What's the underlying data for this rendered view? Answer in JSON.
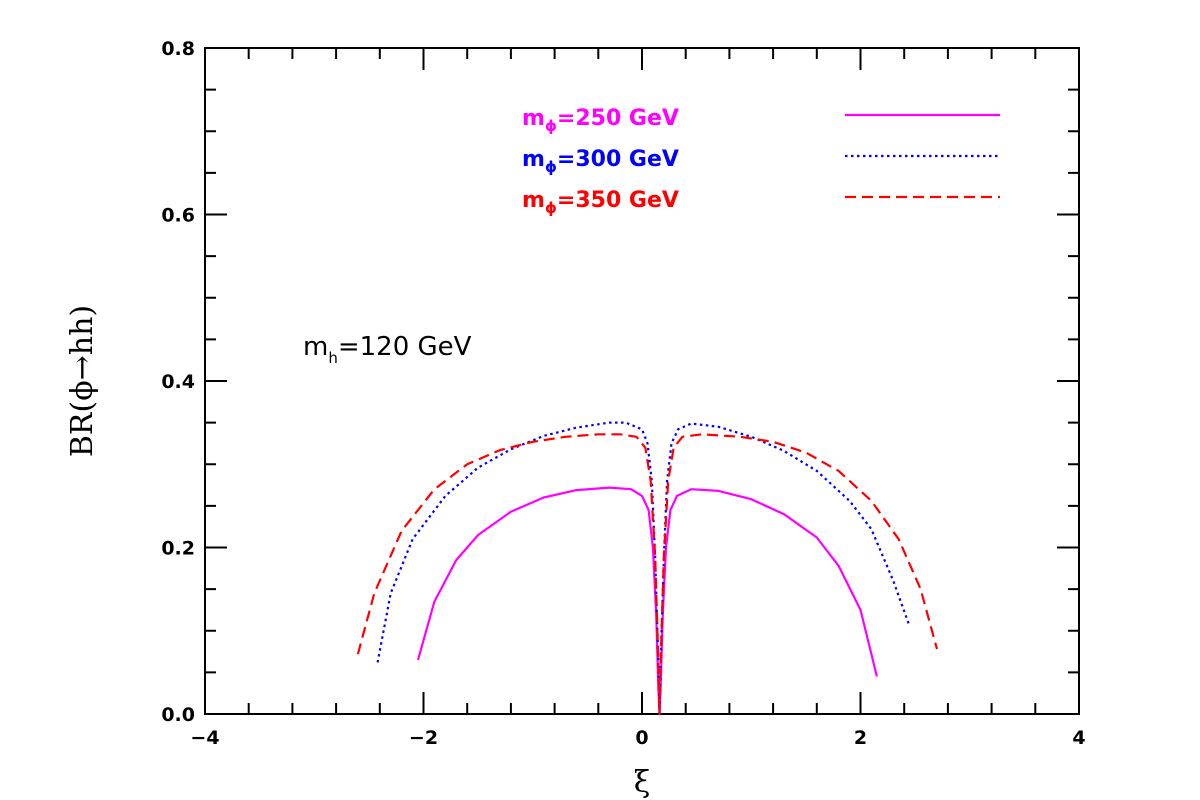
{
  "chart_data": {
    "type": "line",
    "title": "",
    "xlabel": "ξ",
    "ylabel": "BR(ϕ→hh)",
    "xlim": [
      -4,
      4
    ],
    "ylim": [
      0,
      0.8
    ],
    "x_major_ticks": [
      -4,
      -2,
      0,
      2,
      4
    ],
    "x_tick_labels": [
      "−4",
      "−2",
      "0",
      "2",
      "4"
    ],
    "y_major_ticks": [
      0.0,
      0.2,
      0.4,
      0.6,
      0.8
    ],
    "y_tick_labels": [
      "0.0",
      "0.2",
      "0.4",
      "0.6",
      "0.8"
    ],
    "grid": false,
    "legend_position": "top-right",
    "annotation": {
      "prefix": "m",
      "subscript": "h",
      "text": "=120 GeV"
    },
    "series": [
      {
        "name": "mϕ=250 GeV",
        "label_prefix": "m",
        "label_subscript": "ϕ",
        "label_value": "=250 GeV",
        "color": "#ff00ff",
        "dash": "solid",
        "points": [
          [
            -2.05,
            0.065
          ],
          [
            -1.9,
            0.135
          ],
          [
            -1.7,
            0.185
          ],
          [
            -1.5,
            0.215
          ],
          [
            -1.2,
            0.243
          ],
          [
            -0.9,
            0.26
          ],
          [
            -0.6,
            0.269
          ],
          [
            -0.3,
            0.272
          ],
          [
            -0.1,
            0.27
          ],
          [
            0.0,
            0.262
          ],
          [
            0.06,
            0.245
          ],
          [
            0.1,
            0.2
          ],
          [
            0.13,
            0.12
          ],
          [
            0.15,
            0.03
          ],
          [
            0.16,
            0.0
          ],
          [
            0.17,
            0.03
          ],
          [
            0.19,
            0.12
          ],
          [
            0.22,
            0.2
          ],
          [
            0.26,
            0.245
          ],
          [
            0.32,
            0.262
          ],
          [
            0.45,
            0.27
          ],
          [
            0.7,
            0.268
          ],
          [
            1.0,
            0.258
          ],
          [
            1.3,
            0.24
          ],
          [
            1.6,
            0.212
          ],
          [
            1.8,
            0.178
          ],
          [
            2.0,
            0.125
          ],
          [
            2.15,
            0.045
          ]
        ]
      },
      {
        "name": "mϕ=300 GeV",
        "label_prefix": "m",
        "label_subscript": "ϕ",
        "label_value": "=300 GeV",
        "color": "#0000ff",
        "dash": "dotted",
        "points": [
          [
            -2.42,
            0.062
          ],
          [
            -2.3,
            0.145
          ],
          [
            -2.1,
            0.21
          ],
          [
            -1.8,
            0.262
          ],
          [
            -1.5,
            0.296
          ],
          [
            -1.2,
            0.318
          ],
          [
            -0.9,
            0.334
          ],
          [
            -0.6,
            0.344
          ],
          [
            -0.3,
            0.35
          ],
          [
            -0.15,
            0.35
          ],
          [
            0.0,
            0.342
          ],
          [
            0.05,
            0.325
          ],
          [
            0.09,
            0.28
          ],
          [
            0.12,
            0.19
          ],
          [
            0.15,
            0.06
          ],
          [
            0.16,
            0.0
          ],
          [
            0.17,
            0.06
          ],
          [
            0.2,
            0.19
          ],
          [
            0.23,
            0.28
          ],
          [
            0.27,
            0.325
          ],
          [
            0.33,
            0.342
          ],
          [
            0.45,
            0.349
          ],
          [
            0.7,
            0.345
          ],
          [
            1.0,
            0.333
          ],
          [
            1.3,
            0.316
          ],
          [
            1.6,
            0.292
          ],
          [
            1.9,
            0.256
          ],
          [
            2.1,
            0.222
          ],
          [
            2.3,
            0.16
          ],
          [
            2.45,
            0.105
          ]
        ]
      },
      {
        "name": "mϕ=350 GeV",
        "label_prefix": "m",
        "label_subscript": "ϕ",
        "label_value": "=350 GeV",
        "color": "#ff0000",
        "dash": "dashed",
        "points": [
          [
            -2.6,
            0.072
          ],
          [
            -2.45,
            0.145
          ],
          [
            -2.2,
            0.22
          ],
          [
            -1.9,
            0.27
          ],
          [
            -1.6,
            0.3
          ],
          [
            -1.3,
            0.317
          ],
          [
            -1.0,
            0.327
          ],
          [
            -0.7,
            0.333
          ],
          [
            -0.4,
            0.336
          ],
          [
            -0.2,
            0.336
          ],
          [
            -0.05,
            0.333
          ],
          [
            0.03,
            0.32
          ],
          [
            0.08,
            0.28
          ],
          [
            0.12,
            0.19
          ],
          [
            0.15,
            0.06
          ],
          [
            0.16,
            0.0
          ],
          [
            0.17,
            0.06
          ],
          [
            0.2,
            0.19
          ],
          [
            0.24,
            0.28
          ],
          [
            0.29,
            0.32
          ],
          [
            0.37,
            0.333
          ],
          [
            0.55,
            0.336
          ],
          [
            0.9,
            0.333
          ],
          [
            1.2,
            0.327
          ],
          [
            1.5,
            0.314
          ],
          [
            1.8,
            0.292
          ],
          [
            2.1,
            0.256
          ],
          [
            2.35,
            0.21
          ],
          [
            2.55,
            0.15
          ],
          [
            2.7,
            0.078
          ]
        ]
      }
    ]
  }
}
